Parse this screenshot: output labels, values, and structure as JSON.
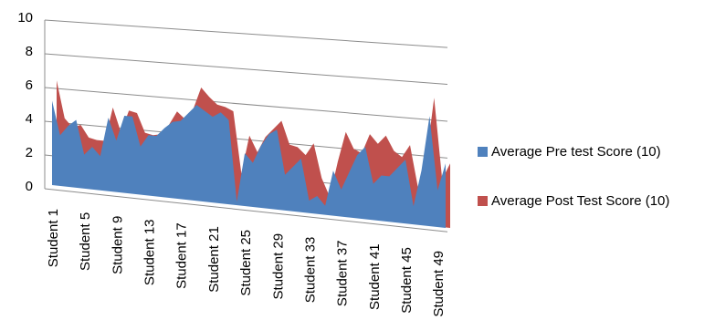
{
  "chart_data": {
    "type": "area",
    "title": "",
    "xlabel": "",
    "ylabel": "",
    "ylim": [
      0,
      10
    ],
    "y_ticks": [
      0,
      2,
      4,
      6,
      8,
      10
    ],
    "grid": true,
    "legend_position": "right",
    "x": [
      "Student 1",
      "Student 2",
      "Student 3",
      "Student 4",
      "Student 5",
      "Student 6",
      "Student 7",
      "Student 8",
      "Student 9",
      "Student 10",
      "Student 11",
      "Student 12",
      "Student 13",
      "Student 14",
      "Student 15",
      "Student 16",
      "Student 17",
      "Student 18",
      "Student 19",
      "Student 20",
      "Student 21",
      "Student 22",
      "Student 23",
      "Student 24",
      "Student 25",
      "Student 26",
      "Student 27",
      "Student 28",
      "Student 29",
      "Student 30",
      "Student 31",
      "Student 32",
      "Student 33",
      "Student 34",
      "Student 35",
      "Student 36",
      "Student 37",
      "Student 38",
      "Student 39",
      "Student 40",
      "Student 41",
      "Student 42",
      "Student 43",
      "Student 44",
      "Student 45",
      "Student 46",
      "Student 47",
      "Student 48",
      "Student 49",
      "Student 50"
    ],
    "x_tick_labels": [
      "Student 1",
      "Student 5",
      "Student 9",
      "Student 13",
      "Student 17",
      "Student 21",
      "Student 25",
      "Student 29",
      "Student 33",
      "Student 37",
      "Student 41",
      "Student 45",
      "Student 49"
    ],
    "series": [
      {
        "name": "Average Pre test Score (10)",
        "color": "#4f81bd",
        "values": [
          5.0,
          3.0,
          3.6,
          4.0,
          2.0,
          2.5,
          2.0,
          4.3,
          3.0,
          4.5,
          4.5,
          2.8,
          3.5,
          3.5,
          4.0,
          4.4,
          4.5,
          5.0,
          5.5,
          5.2,
          4.9,
          5.2,
          4.8,
          0.2,
          3.0,
          2.5,
          3.5,
          4.2,
          4.5,
          2.0,
          2.5,
          3.0,
          0.7,
          1.0,
          0.5,
          2.5,
          1.5,
          2.5,
          3.5,
          4.0,
          2.0,
          2.5,
          2.5,
          3.0,
          3.5,
          1.0,
          3.0,
          6.0,
          2.0,
          3.5
        ]
      },
      {
        "name": "Average Post Test Score (10)",
        "color": "#c0504d",
        "values": [
          6.2,
          4.0,
          3.5,
          3.7,
          3.0,
          2.9,
          2.9,
          4.9,
          3.5,
          4.8,
          4.7,
          3.6,
          3.5,
          3.6,
          4.2,
          5.0,
          4.6,
          5.2,
          6.5,
          6.0,
          5.6,
          5.5,
          5.3,
          1.8,
          4.0,
          3.1,
          4.0,
          4.5,
          5.0,
          3.7,
          3.6,
          3.2,
          3.9,
          2.0,
          1.0,
          3.0,
          4.7,
          3.8,
          3.6,
          4.7,
          4.2,
          4.7,
          3.9,
          3.6,
          4.3,
          2.0,
          3.5,
          7.0,
          2.6,
          3.5
        ]
      }
    ]
  }
}
